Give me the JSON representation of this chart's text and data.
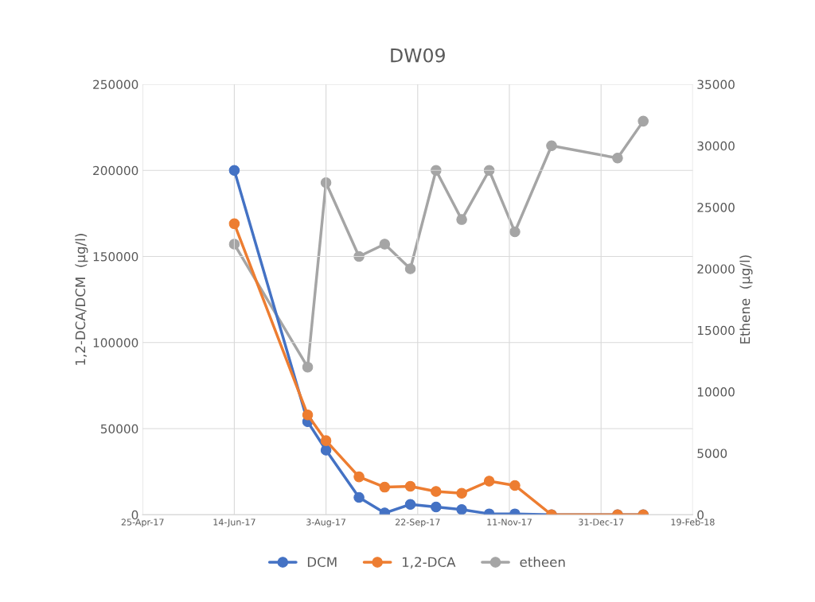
{
  "chart_data": {
    "type": "line",
    "title": "DW09",
    "ylabel": "1,2-DCA/DCM  (µg/l)",
    "y2label": "Ethene  (µg/l)",
    "x": [
      "2017-06-14",
      "2017-07-24",
      "2017-08-03",
      "2017-08-21",
      "2017-09-04",
      "2017-09-18",
      "2017-10-02",
      "2017-10-16",
      "2017-10-31",
      "2017-11-14",
      "2017-12-04",
      "2018-01-09",
      "2018-01-23"
    ],
    "series": [
      {
        "name": "DCM",
        "color": "#4472c4",
        "values": [
          200000,
          54000,
          37500,
          10000,
          1000,
          6000,
          4500,
          3000,
          500,
          500,
          0,
          0,
          0
        ]
      },
      {
        "name": "1,2-DCA",
        "color": "#ed7d31",
        "values": [
          169000,
          58000,
          43000,
          22000,
          16000,
          16500,
          13500,
          12500,
          19500,
          17000,
          0,
          0,
          0
        ]
      },
      {
        "name": "etheen",
        "color": "#a5a5a5",
        "axis": "y2",
        "values": [
          22000,
          12000,
          27000,
          21000,
          22000,
          20000,
          28000,
          24000,
          28000,
          23000,
          30000,
          29000,
          32000
        ]
      }
    ],
    "xlim": [
      "2017-04-25",
      "2018-02-19"
    ],
    "xticks": [
      {
        "value": "2017-04-25",
        "label": "25-Apr-17"
      },
      {
        "value": "2017-06-14",
        "label": "14-Jun-17"
      },
      {
        "value": "2017-08-03",
        "label": "3-Aug-17"
      },
      {
        "value": "2017-09-22",
        "label": "22-Sep-17"
      },
      {
        "value": "2017-11-11",
        "label": "11-Nov-17"
      },
      {
        "value": "2017-12-31",
        "label": "31-Dec-17"
      },
      {
        "value": "2018-02-19",
        "label": "19-Feb-18"
      }
    ],
    "ylim": [
      0,
      250000
    ],
    "yticks": [
      0,
      50000,
      100000,
      150000,
      200000,
      250000
    ],
    "y2lim": [
      0,
      35000
    ],
    "y2ticks": [
      0,
      5000,
      10000,
      15000,
      20000,
      25000,
      30000,
      35000
    ],
    "grid": true,
    "legend": "bottom",
    "marker": "circle",
    "line_style": "solid"
  }
}
